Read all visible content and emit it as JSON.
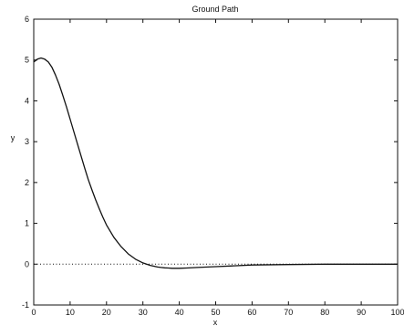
{
  "chart_data": {
    "type": "line",
    "title": "Ground Path",
    "xlabel": "x",
    "ylabel": "y",
    "xlim": [
      0,
      100
    ],
    "ylim": [
      -1,
      6
    ],
    "xticks": [
      "0",
      "10",
      "20",
      "30",
      "40",
      "50",
      "60",
      "70",
      "80",
      "90",
      "100"
    ],
    "yticks": [
      "-1",
      "0",
      "1",
      "2",
      "3",
      "4",
      "5",
      "6"
    ],
    "grid": false,
    "series": [
      {
        "style": "solid",
        "color": "#111111",
        "x": [
          0,
          1,
          2,
          3,
          4,
          5,
          6,
          7,
          8,
          9,
          10,
          11,
          12,
          13,
          14,
          15,
          16,
          17,
          18,
          19,
          20,
          22,
          24,
          26,
          28,
          30,
          32,
          34,
          35,
          36,
          37,
          38,
          40,
          42,
          45,
          50,
          55,
          60,
          70,
          80,
          90,
          100
        ],
        "y": [
          4.95,
          5.02,
          5.05,
          5.02,
          4.95,
          4.82,
          4.63,
          4.4,
          4.13,
          3.85,
          3.55,
          3.25,
          2.95,
          2.65,
          2.35,
          2.07,
          1.82,
          1.58,
          1.36,
          1.15,
          0.96,
          0.66,
          0.43,
          0.25,
          0.12,
          0.03,
          -0.03,
          -0.07,
          -0.08,
          -0.09,
          -0.095,
          -0.1,
          -0.1,
          -0.095,
          -0.08,
          -0.06,
          -0.04,
          -0.02,
          -0.01,
          0.0,
          0.0,
          0.0
        ]
      },
      {
        "style": "dotted",
        "color": "#111111",
        "x": [
          0,
          100
        ],
        "y": [
          0,
          0
        ]
      }
    ]
  }
}
